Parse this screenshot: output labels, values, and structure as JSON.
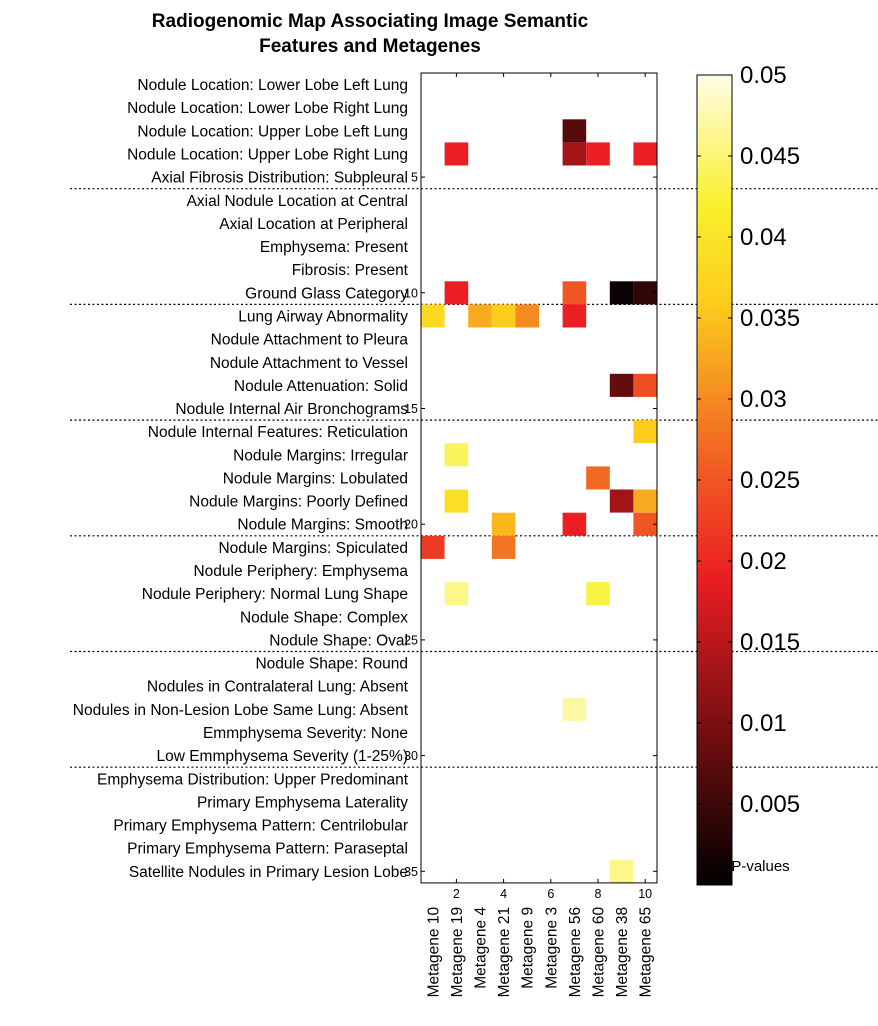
{
  "chart_data": {
    "type": "heatmap",
    "title_lines": [
      "Radiogenomic Map Associating Image Semantic",
      "Features and Metagenes"
    ],
    "rows": [
      "Nodule Location: Lower Lobe Left Lung",
      "Nodule Location: Lower Lobe Right Lung",
      "Nodule Location: Upper Lobe Left Lung",
      "Nodule Location: Upper Lobe Right Lung",
      "Axial Fibrosis Distribution: Subpleural",
      "Axial Nodule Location at Central",
      "Axial Location at Peripheral",
      "Emphysema: Present",
      "Fibrosis: Present",
      "Ground Glass Category",
      "Lung Airway Abnormality",
      "Nodule Attachment to Pleura",
      "Nodule Attachment to Vessel",
      "Nodule Attenuation: Solid",
      "Nodule Internal Air Bronchograms",
      "Nodule Internal Features: Reticulation",
      "Nodule Margins: Irregular",
      "Nodule Margins: Lobulated",
      "Nodule Margins: Poorly Defined",
      "Nodule Margins: Smooth",
      "Nodule Margins: Spiculated",
      "Nodule Periphery: Emphysema",
      "Nodule Periphery: Normal Lung Shape",
      "Nodule Shape: Complex",
      "Nodule Shape: Oval",
      "Nodule Shape: Round",
      "Nodules in Contralateral Lung: Absent",
      "Nodules in Non-Lesion Lobe Same Lung: Absent",
      "Emmphysema Severity: None",
      "Low Emmphysema Severity (1-25%)",
      "Emphysema Distribution: Upper Predominant",
      "Primary Emphysema Laterality",
      "Primary Emphysema Pattern: Centrilobular",
      "Primary Emphysema Pattern: Paraseptal",
      "Satellite Nodules in Primary Lesion Lobe"
    ],
    "columns": [
      "Metagene 10",
      "Metagene 19",
      "Metagene 4",
      "Metagene 21",
      "Metagene 9",
      "Metagene 3",
      "Metagene 56",
      "Metagene 60",
      "Metagene 38",
      "Metagene 65"
    ],
    "y_ticks": [
      5,
      10,
      15,
      20,
      25,
      30,
      35
    ],
    "x_ticks": [
      2,
      4,
      6,
      8,
      10
    ],
    "cells": [
      {
        "row": 3,
        "col": 7,
        "p": 0.007
      },
      {
        "row": 4,
        "col": 2,
        "p": 0.019
      },
      {
        "row": 4,
        "col": 7,
        "p": 0.013
      },
      {
        "row": 4,
        "col": 8,
        "p": 0.019
      },
      {
        "row": 4,
        "col": 10,
        "p": 0.019
      },
      {
        "row": 10,
        "col": 2,
        "p": 0.019
      },
      {
        "row": 10,
        "col": 7,
        "p": 0.025
      },
      {
        "row": 10,
        "col": 9,
        "p": 0.001
      },
      {
        "row": 10,
        "col": 10,
        "p": 0.004
      },
      {
        "row": 11,
        "col": 1,
        "p": 0.038
      },
      {
        "row": 11,
        "col": 3,
        "p": 0.033
      },
      {
        "row": 11,
        "col": 4,
        "p": 0.036
      },
      {
        "row": 11,
        "col": 5,
        "p": 0.03
      },
      {
        "row": 11,
        "col": 7,
        "p": 0.019
      },
      {
        "row": 14,
        "col": 9,
        "p": 0.008
      },
      {
        "row": 14,
        "col": 10,
        "p": 0.024
      },
      {
        "row": 16,
        "col": 10,
        "p": 0.036
      },
      {
        "row": 17,
        "col": 2,
        "p": 0.044
      },
      {
        "row": 18,
        "col": 8,
        "p": 0.027
      },
      {
        "row": 19,
        "col": 2,
        "p": 0.039
      },
      {
        "row": 19,
        "col": 9,
        "p": 0.013
      },
      {
        "row": 19,
        "col": 10,
        "p": 0.033
      },
      {
        "row": 20,
        "col": 4,
        "p": 0.034
      },
      {
        "row": 20,
        "col": 7,
        "p": 0.019
      },
      {
        "row": 20,
        "col": 10,
        "p": 0.025
      },
      {
        "row": 21,
        "col": 1,
        "p": 0.022
      },
      {
        "row": 21,
        "col": 4,
        "p": 0.028
      },
      {
        "row": 23,
        "col": 2,
        "p": 0.046
      },
      {
        "row": 23,
        "col": 8,
        "p": 0.043
      },
      {
        "row": 28,
        "col": 7,
        "p": 0.047
      },
      {
        "row": 35,
        "col": 9,
        "p": 0.046
      }
    ],
    "group_dividers_after_rows": [
      5,
      10,
      15,
      20,
      25,
      30
    ],
    "colorbar": {
      "min": 0,
      "max": 0.05,
      "ticks": [
        0.05,
        0.045,
        0.04,
        0.035,
        0.03,
        0.025,
        0.02,
        0.015,
        0.01,
        0.005
      ],
      "tick_labels": [
        "0.05",
        "0.045",
        "0.04",
        "0.035",
        "0.03",
        "0.025",
        "0.02",
        "0.015",
        "0.01",
        "0.005"
      ],
      "label": "P-values",
      "colormap": "hot",
      "low_color": "#000000",
      "high_color": "#fffde8"
    },
    "grid": false
  }
}
